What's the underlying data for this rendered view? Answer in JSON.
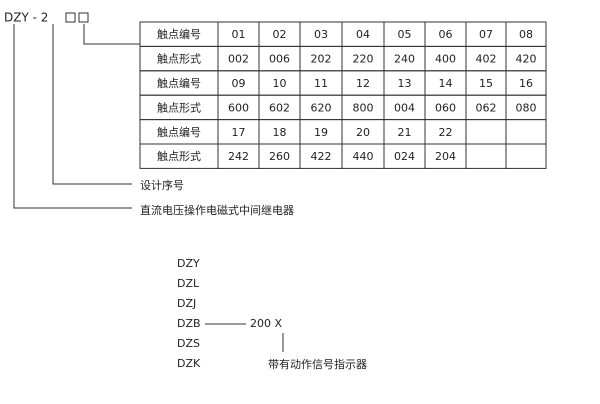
{
  "header": {
    "code": "DZY - 2"
  },
  "table": {
    "rows": [
      [
        "触点编号",
        "01",
        "02",
        "03",
        "04",
        "05",
        "06",
        "07",
        "08"
      ],
      [
        "触点形式",
        "002",
        "006",
        "202",
        "220",
        "240",
        "400",
        "402",
        "420"
      ],
      [
        "触点编号",
        "09",
        "10",
        "11",
        "12",
        "13",
        "14",
        "15",
        "16"
      ],
      [
        "触点形式",
        "600",
        "602",
        "620",
        "800",
        "004",
        "060",
        "062",
        "080"
      ],
      [
        "触点编号",
        "17",
        "18",
        "19",
        "20",
        "21",
        "22"
      ],
      [
        "触点形式",
        "242",
        "260",
        "422",
        "440",
        "024",
        "204"
      ]
    ]
  },
  "labels": {
    "serial": "设计序号",
    "product": "直流电压操作电磁式中间继电器"
  },
  "variants": {
    "models": [
      "DZY",
      "DZL",
      "DZJ",
      "DZB",
      "DZS",
      "DZK"
    ],
    "suffix": "200  X",
    "note": "带有动作信号指示器"
  }
}
